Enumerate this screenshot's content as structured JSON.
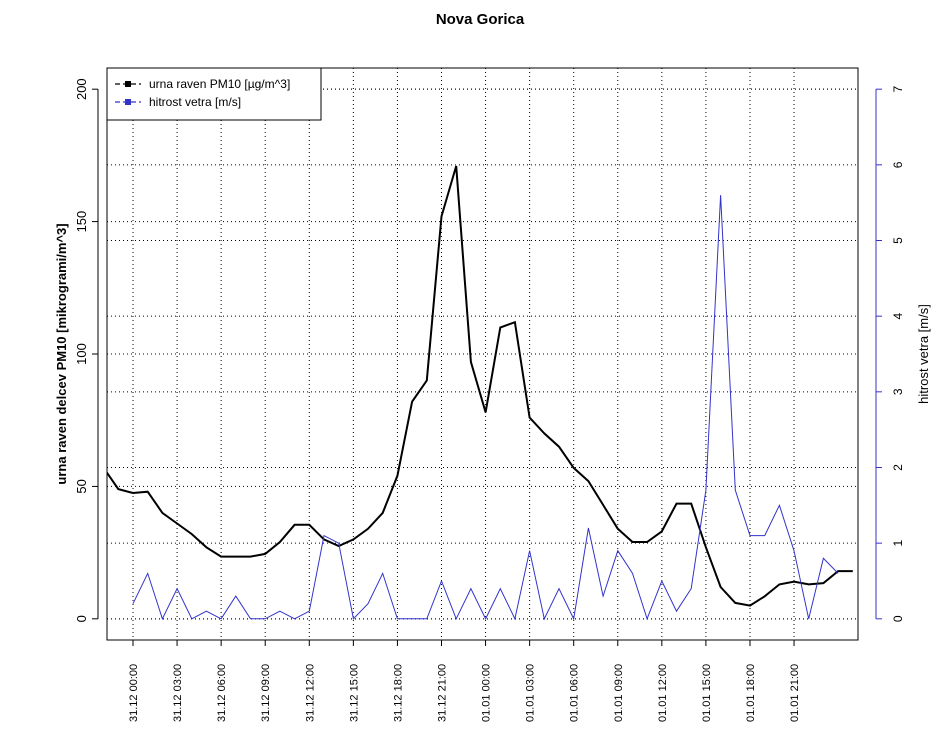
{
  "chart_data": {
    "type": "line",
    "title": "Nova Gorica",
    "ylabel": "urna raven delcev PM10 [mikrogrami/m^3]",
    "y2label": "hitrost vetra [m/s]",
    "categories": [
      null,
      null,
      "31.12 00:00",
      null,
      null,
      "31.12 03:00",
      null,
      null,
      "31.12 06:00",
      null,
      null,
      "31.12 09:00",
      null,
      null,
      "31.12 12:00",
      null,
      null,
      "31.12 15:00",
      null,
      null,
      "31.12 18:00",
      null,
      null,
      "31.12 21:00",
      null,
      null,
      "01.01 00:00",
      null,
      null,
      "01.01 03:00",
      null,
      null,
      "01.01 06:00",
      null,
      null,
      "01.01 09:00",
      null,
      null,
      "01.01 12:00",
      null,
      null,
      "01.01 15:00",
      null,
      null,
      "01.01 18:00",
      null,
      null,
      "01.01 21:00",
      null,
      null,
      null,
      null
    ],
    "series": [
      {
        "name": "urna raven PM10 [µg/m^3]",
        "color": "#000000",
        "axis": "y",
        "values": [
          57,
          49,
          47.5,
          48,
          40,
          36,
          32,
          27,
          23.5,
          23.5,
          23.5,
          24.5,
          29,
          35.5,
          35.5,
          30,
          27.5,
          30,
          34,
          40,
          54,
          82,
          90,
          152,
          171,
          97,
          78,
          110,
          112,
          76,
          70,
          65,
          57,
          52,
          43,
          34,
          29,
          29,
          33,
          43.5,
          43.5,
          27,
          12,
          6,
          5,
          8.5,
          13,
          14,
          13,
          13.5,
          18,
          18
        ]
      },
      {
        "name": "hitrost vetra [m/s]",
        "color": "#3333cc",
        "axis": "y2",
        "values": [
          null,
          null,
          0.2,
          0.6,
          0.0,
          0.4,
          0.0,
          0.1,
          0.0,
          0.3,
          0.0,
          0.0,
          0.1,
          0.0,
          0.1,
          1.1,
          1.0,
          0.0,
          0.2,
          0.6,
          0.0,
          0.0,
          0.0,
          0.5,
          0.0,
          0.4,
          0.0,
          0.4,
          0.0,
          0.9,
          0.0,
          0.4,
          0.0,
          1.2,
          0.3,
          0.9,
          0.6,
          0.0,
          0.5,
          0.1,
          0.4,
          1.7,
          5.6,
          1.7,
          1.1,
          1.1,
          1.5,
          0.9,
          0.0,
          0.8,
          0.6,
          null
        ]
      }
    ],
    "ylim": [
      -8,
      208
    ],
    "yticks": [
      0,
      50,
      100,
      150,
      200
    ],
    "y2lim": [
      -0.28,
      7.28
    ],
    "y2ticks": [
      0,
      1,
      2,
      3,
      4,
      5,
      6,
      7
    ],
    "grid": true,
    "legend": "top-left"
  }
}
